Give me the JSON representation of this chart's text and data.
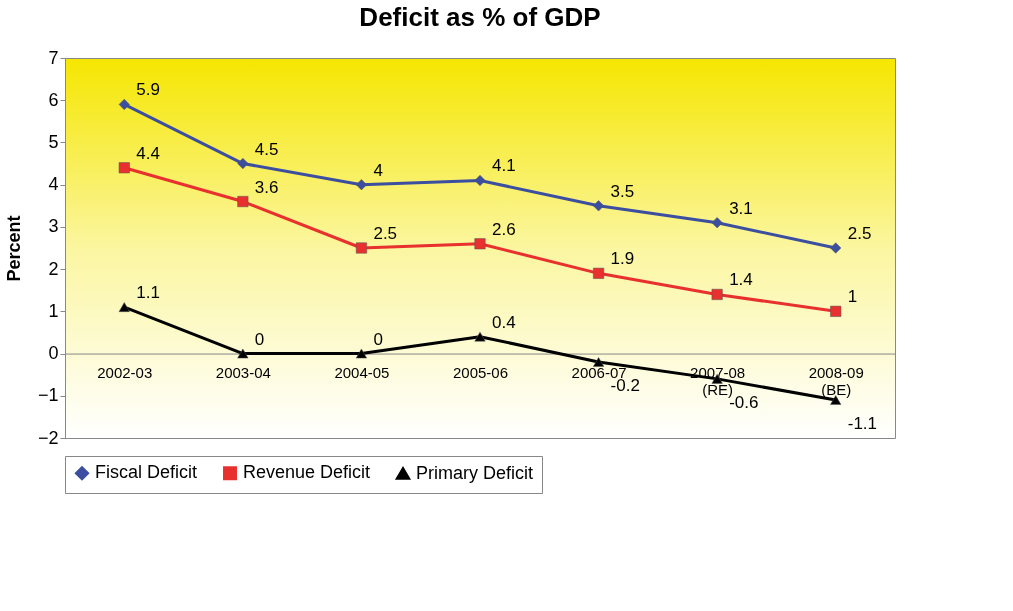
{
  "chart_data": {
    "type": "line",
    "title": "Deficit as % of GDP",
    "ylabel": "Percent",
    "categories": [
      "2002-03",
      "2003-04",
      "2004-05",
      "2005-06",
      "2006-07",
      "2007-08 (RE)",
      "2008-09 (BE)"
    ],
    "series": [
      {
        "name": "Fiscal Deficit",
        "color": "#3b4ea0",
        "marker": "diamond",
        "values": [
          5.9,
          4.5,
          4,
          4.1,
          3.5,
          3.1,
          2.5
        ]
      },
      {
        "name": "Revenue Deficit",
        "color": "#e8302e",
        "marker": "square",
        "values": [
          4.4,
          3.6,
          2.5,
          2.6,
          1.9,
          1.4,
          1
        ]
      },
      {
        "name": "Primary Deficit",
        "color": "#000000",
        "marker": "triangle",
        "values": [
          1.1,
          0,
          0,
          0.4,
          -0.2,
          -0.6,
          -1.1
        ]
      }
    ],
    "ylim": [
      -2,
      7
    ],
    "yticks": [
      -2,
      -1,
      0,
      1,
      2,
      3,
      4,
      5,
      6,
      7
    ],
    "grid": false,
    "legend": "bottom",
    "data_labels": true
  }
}
